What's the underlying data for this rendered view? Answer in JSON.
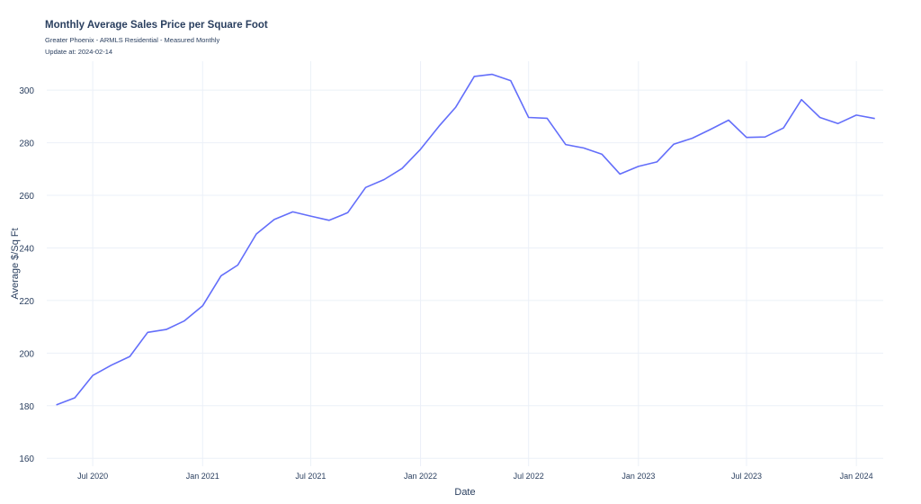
{
  "header": {
    "title": "Monthly Average Sales Price per Square Foot",
    "subtitle": "Greater Phoenix - ARMLS Residential - Measured Monthly",
    "update": "Update at: 2024-02-14"
  },
  "colors": {
    "line": "#636efa",
    "grid": "#ebf0f8",
    "text": "#2a3f5f",
    "background": "#ffffff"
  },
  "chart_data": {
    "type": "line",
    "xlabel": "Date",
    "ylabel": "Average $/Sq Ft",
    "ylim": [
      157,
      311
    ],
    "xlim": [
      "2020-04-15",
      "2024-02-15"
    ],
    "grid": true,
    "x_ticks": [
      {
        "date": "2020-07-01",
        "label": "Jul 2020"
      },
      {
        "date": "2021-01-01",
        "label": "Jan 2021"
      },
      {
        "date": "2021-07-01",
        "label": "Jul 2021"
      },
      {
        "date": "2022-01-01",
        "label": "Jan 2022"
      },
      {
        "date": "2022-07-01",
        "label": "Jul 2022"
      },
      {
        "date": "2023-01-01",
        "label": "Jan 2023"
      },
      {
        "date": "2023-07-01",
        "label": "Jul 2023"
      },
      {
        "date": "2024-01-01",
        "label": "Jan 2024"
      }
    ],
    "y_ticks": [
      160,
      180,
      200,
      220,
      240,
      260,
      280,
      300
    ],
    "series": [
      {
        "x": [
          "2020-05-01",
          "2020-06-01",
          "2020-07-01",
          "2020-08-01",
          "2020-09-01",
          "2020-10-01",
          "2020-11-01",
          "2020-12-01",
          "2021-01-01",
          "2021-02-01",
          "2021-03-01",
          "2021-04-01",
          "2021-05-01",
          "2021-06-01",
          "2021-07-01",
          "2021-08-01",
          "2021-09-01",
          "2021-10-01",
          "2021-11-01",
          "2021-12-01",
          "2022-01-01",
          "2022-02-01",
          "2022-03-01",
          "2022-04-01",
          "2022-05-01",
          "2022-06-01",
          "2022-07-01",
          "2022-08-01",
          "2022-09-01",
          "2022-10-01",
          "2022-11-01",
          "2022-12-01",
          "2023-01-01",
          "2023-02-01",
          "2023-03-01",
          "2023-04-01",
          "2023-05-01",
          "2023-06-01",
          "2023-07-01",
          "2023-08-01",
          "2023-09-01",
          "2023-10-01",
          "2023-11-01",
          "2023-12-01",
          "2024-01-01",
          "2024-02-01"
        ],
        "values": [
          180.3,
          183.0,
          191.5,
          195.4,
          198.7,
          207.9,
          209.0,
          212.2,
          218.0,
          229.4,
          233.5,
          245.3,
          250.8,
          253.7,
          252.1,
          250.5,
          253.4,
          263.0,
          266.0,
          270.2,
          277.5,
          286.3,
          293.5,
          305.2,
          306.0,
          303.6,
          289.6,
          289.3,
          279.3,
          278.0,
          275.6,
          268.1,
          271.0,
          272.7,
          279.4,
          281.7,
          285.0,
          288.6,
          282.0,
          282.2,
          285.6,
          296.4,
          289.6,
          287.3,
          290.5,
          289.2
        ]
      }
    ]
  }
}
